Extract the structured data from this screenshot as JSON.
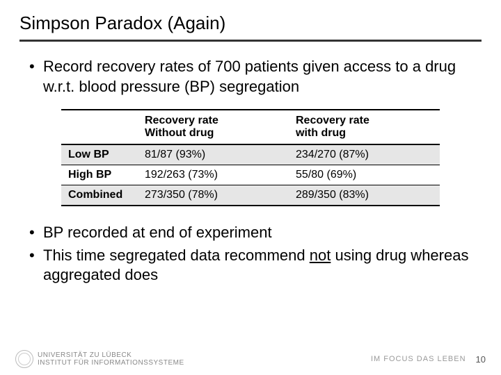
{
  "title": "Simpson Paradox (Again)",
  "bullets_top": [
    "Record recovery rates of 700 patients given access to a drug w.r.t. blood pressure (BP) segregation"
  ],
  "table": {
    "headers": [
      "",
      "Recovery rate Without drug",
      "Recovery rate with drug"
    ],
    "rows": [
      {
        "label": "Low BP",
        "without": "81/87 (93%)",
        "with": "234/270 (87%)",
        "alt": true
      },
      {
        "label": "High BP",
        "without": "192/263 (73%)",
        "with": "55/80 (69%)",
        "alt": false
      },
      {
        "label": "Combined",
        "without": "273/350 (78%)",
        "with": "289/350 (83%)",
        "alt": true
      }
    ],
    "col_widths": [
      "110px",
      "auto",
      "auto"
    ],
    "header_border_color": "#000000",
    "row_border_color": "#000000",
    "alt_row_bg": "#e6e6e6",
    "font_size": 16
  },
  "bullets_bottom": {
    "b1": "BP recorded at end of experiment",
    "b2_pre": "This time segregated data recommend ",
    "b2_underline": "not",
    "b2_post": " using drug whereas aggregated does"
  },
  "footer": {
    "university": "UNIVERSITÄT ZU LÜBECK",
    "institute": "INSTITUT FÜR INFORMATIONSSYSTEME",
    "tagline": "IM FOCUS DAS LEBEN",
    "page": "10"
  },
  "colors": {
    "title_rule": "#333333",
    "text": "#000000",
    "footer_text": "#888888",
    "background": "#ffffff"
  }
}
